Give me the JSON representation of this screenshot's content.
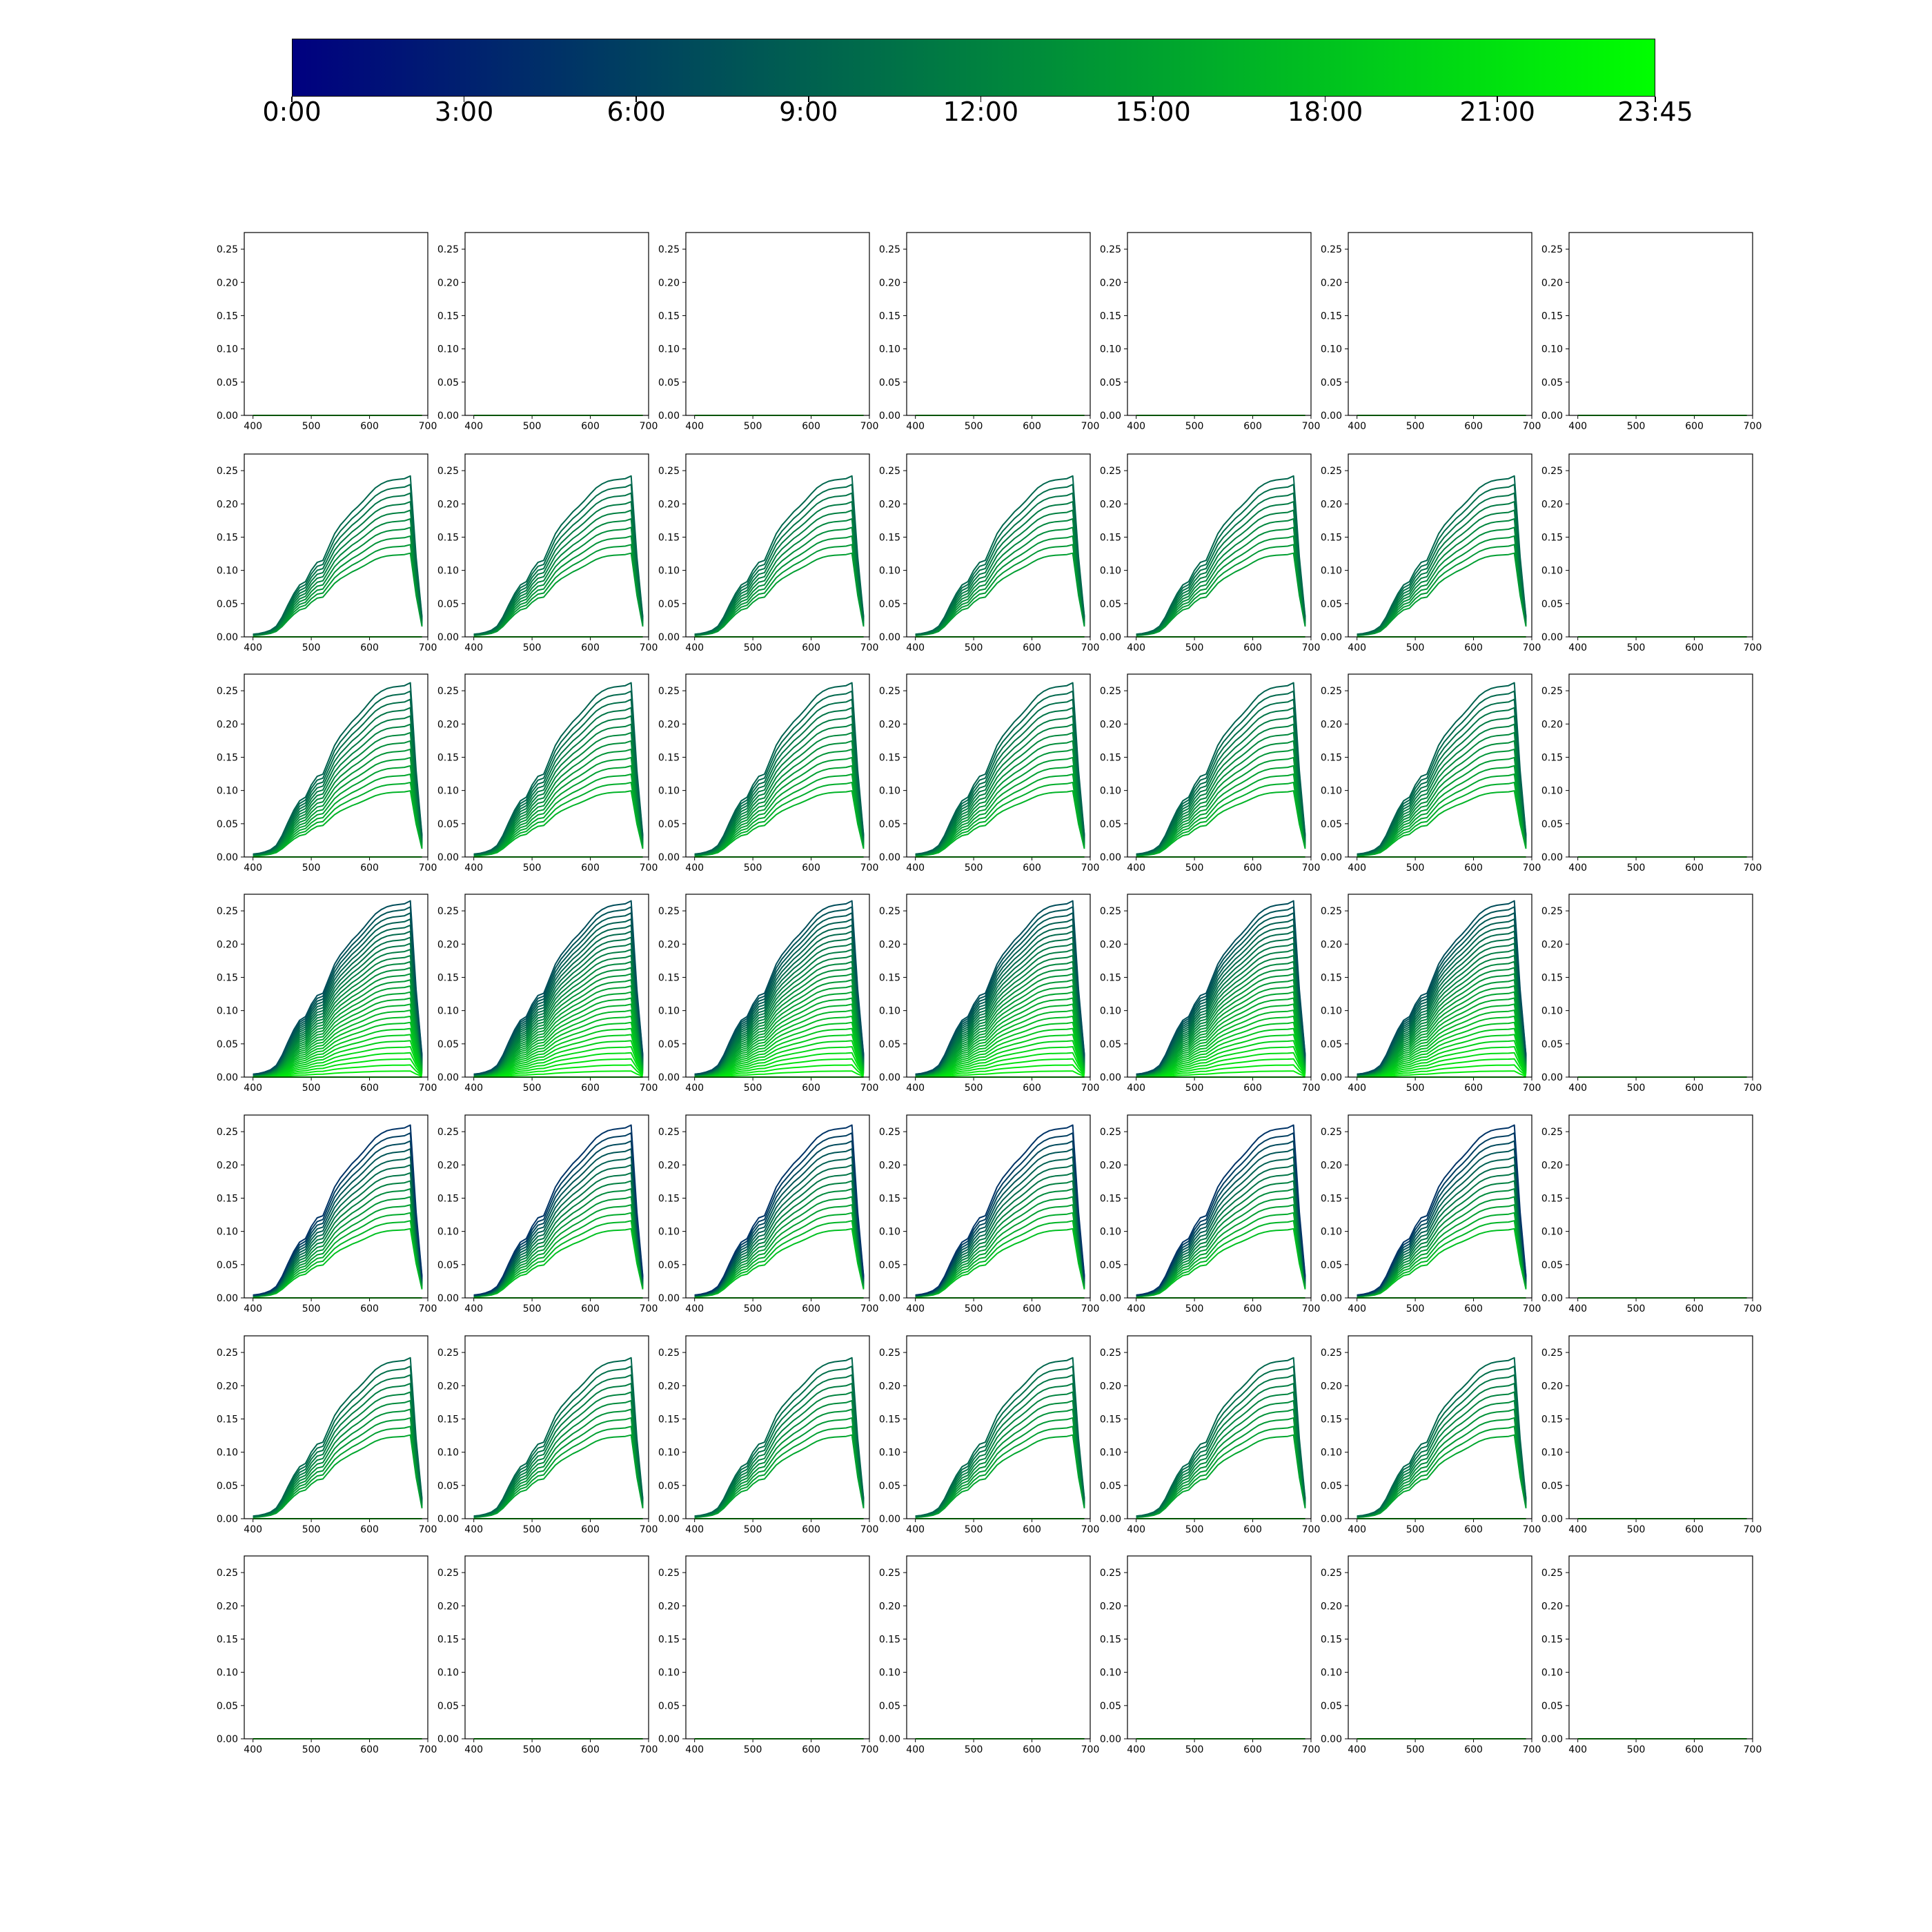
{
  "colorbar": {
    "colors": [
      "#000080",
      "#008040",
      "#00ff00"
    ],
    "tick_labels": [
      "0:00",
      "3:00",
      "6:00",
      "9:00",
      "12:00",
      "15:00",
      "18:00",
      "21:00",
      "23:45"
    ]
  },
  "chart_data": {
    "type": "line",
    "layout": "7x7 grid of small-multiple panels",
    "xlim": [
      385,
      700
    ],
    "ylim": [
      0,
      0.275
    ],
    "x_ticks": [
      "400",
      "500",
      "600",
      "700"
    ],
    "y_ticks": [
      "0.00",
      "0.05",
      "0.10",
      "0.15",
      "0.20",
      "0.25"
    ],
    "wavelength_x": [
      400,
      410,
      420,
      430,
      440,
      450,
      460,
      470,
      480,
      490,
      500,
      510,
      520,
      530,
      540,
      550,
      560,
      570,
      580,
      590,
      600,
      610,
      620,
      630,
      640,
      650,
      660,
      670,
      680,
      690
    ],
    "base_spectrum": [
      0.004,
      0.005,
      0.007,
      0.01,
      0.016,
      0.03,
      0.048,
      0.065,
      0.078,
      0.083,
      0.1,
      0.112,
      0.115,
      0.135,
      0.155,
      0.168,
      0.178,
      0.188,
      0.196,
      0.205,
      0.215,
      0.224,
      0.23,
      0.234,
      0.236,
      0.237,
      0.238,
      0.242,
      0.12,
      0.03
    ],
    "series_color_scale": "time of day, 0:00 to 23:45",
    "panel_rows": [
      {
        "row": 1,
        "peak": 0.0,
        "curves": 1,
        "time_range": [
          0,
          0
        ],
        "last_panel_empty": false
      },
      {
        "row": 2,
        "peak": 0.242,
        "curves": 10,
        "time_range": [
          0.4,
          0.62
        ],
        "min_ratio": 0.52,
        "last_panel_empty": true
      },
      {
        "row": 3,
        "peak": 0.262,
        "curves": 14,
        "time_range": [
          0.38,
          0.7
        ],
        "min_ratio": 0.38,
        "last_panel_empty": true
      },
      {
        "row": 4,
        "peak": 0.265,
        "curves": 30,
        "time_range": [
          0.3,
          0.95
        ],
        "min_ratio": 0.0,
        "last_panel_empty": true
      },
      {
        "row": 5,
        "peak": 0.26,
        "curves": 14,
        "time_range": [
          0.2,
          0.75
        ],
        "min_ratio": 0.4,
        "last_panel_empty": true
      },
      {
        "row": 6,
        "peak": 0.242,
        "curves": 10,
        "time_range": [
          0.4,
          0.65
        ],
        "min_ratio": 0.52,
        "last_panel_empty": true
      },
      {
        "row": 7,
        "peak": 0.0,
        "curves": 1,
        "time_range": [
          0,
          0
        ],
        "last_panel_empty": false
      }
    ]
  }
}
